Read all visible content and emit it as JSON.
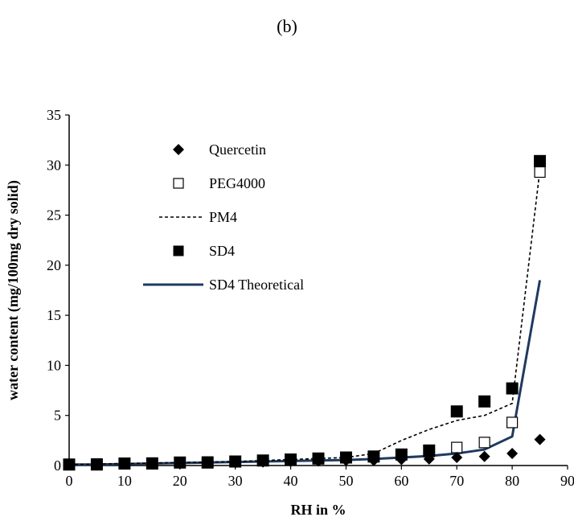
{
  "panel_label": "(b)",
  "chart_data": {
    "type": "scatter",
    "title": "",
    "xlabel": "RH in %",
    "ylabel": "water content (mg/100mg dry solid)",
    "xlim": [
      0,
      90
    ],
    "ylim": [
      0,
      35
    ],
    "x_ticks": [
      "0",
      "10",
      "20",
      "30",
      "40",
      "50",
      "60",
      "70",
      "80",
      "90"
    ],
    "y_ticks": [
      "0",
      "5",
      "10",
      "15",
      "20",
      "25",
      "30",
      "35"
    ],
    "x_tick_values": [
      0,
      10,
      20,
      30,
      40,
      50,
      60,
      70,
      80,
      90
    ],
    "y_tick_values": [
      0,
      5,
      10,
      15,
      20,
      25,
      30,
      35
    ],
    "grid": false,
    "legend_position": "top-left",
    "series": [
      {
        "name": "Quercetin",
        "style": "diamond-filled",
        "color": "#000000",
        "x": [
          0,
          5,
          10,
          15,
          20,
          25,
          30,
          35,
          40,
          45,
          50,
          55,
          60,
          65,
          70,
          75,
          80,
          85
        ],
        "y": [
          0.1,
          0.1,
          0.15,
          0.2,
          0.2,
          0.25,
          0.3,
          0.35,
          0.4,
          0.45,
          0.5,
          0.5,
          0.6,
          0.65,
          0.8,
          0.9,
          1.2,
          2.6
        ]
      },
      {
        "name": "PEG4000",
        "style": "square-open",
        "color": "#000000",
        "x": [
          0,
          5,
          10,
          15,
          20,
          25,
          30,
          35,
          40,
          45,
          50,
          55,
          60,
          65,
          70,
          75,
          80,
          85
        ],
        "y": [
          0.1,
          0.15,
          0.2,
          0.25,
          0.3,
          0.35,
          0.4,
          0.5,
          0.6,
          0.7,
          0.8,
          0.9,
          1.1,
          1.4,
          1.8,
          2.3,
          4.3,
          29.3
        ]
      },
      {
        "name": "PM4",
        "style": "dashed-line",
        "color": "#000000",
        "x": [
          0,
          5,
          10,
          15,
          20,
          25,
          30,
          35,
          40,
          45,
          50,
          55,
          60,
          65,
          70,
          75,
          80,
          85
        ],
        "y": [
          0.1,
          0.15,
          0.2,
          0.25,
          0.3,
          0.35,
          0.4,
          0.5,
          0.6,
          0.7,
          0.8,
          1.2,
          2.5,
          3.6,
          4.5,
          5.0,
          6.2,
          29.5
        ]
      },
      {
        "name": "SD4",
        "style": "square-filled",
        "color": "#000000",
        "x": [
          0,
          5,
          10,
          15,
          20,
          25,
          30,
          35,
          40,
          45,
          50,
          55,
          60,
          65,
          70,
          75,
          80,
          85
        ],
        "y": [
          0.1,
          0.1,
          0.2,
          0.2,
          0.3,
          0.3,
          0.4,
          0.5,
          0.6,
          0.7,
          0.8,
          0.9,
          1.1,
          1.5,
          5.4,
          6.4,
          7.7,
          30.4
        ]
      },
      {
        "name": "SD4 Theoretical",
        "style": "solid-line",
        "color": "#1f3a5f",
        "x": [
          0,
          5,
          10,
          15,
          20,
          25,
          30,
          35,
          40,
          45,
          50,
          55,
          60,
          65,
          70,
          75,
          80,
          85
        ],
        "y": [
          0.1,
          0.1,
          0.15,
          0.2,
          0.25,
          0.3,
          0.35,
          0.4,
          0.45,
          0.5,
          0.55,
          0.65,
          0.8,
          0.95,
          1.2,
          1.6,
          2.9,
          18.5
        ]
      }
    ]
  }
}
